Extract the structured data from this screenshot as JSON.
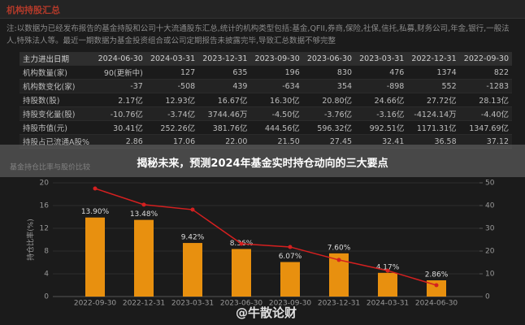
{
  "header": {
    "title": "机构持股汇总"
  },
  "note": "注:以数据为已经发布报告的基金持股和公司十大流通股东汇总,统计的机构类型包括:基金,QFII,券商,保险,社保,信托,私募,财务公司,年金,银行,一般法人,特殊法人等。最近一期数据为基金投资组合或公司定期报告未披露完毕,导致汇总数据不够完整",
  "table": {
    "columns": [
      "主力进出日期",
      "2024-06-30",
      "2024-03-31",
      "2023-12-31",
      "2023-09-30",
      "2023-06-30",
      "2023-03-31",
      "2022-12-31",
      "2022-09-30"
    ],
    "rows": [
      [
        "机构数量(家)",
        "90(更新中)",
        "127",
        "635",
        "196",
        "830",
        "476",
        "1374",
        "822"
      ],
      [
        "机构数变化(家)",
        "-37",
        "-508",
        "439",
        "-634",
        "354",
        "-898",
        "552",
        "-1283"
      ],
      [
        "持股数(股)",
        "2.17亿",
        "12.93亿",
        "16.67亿",
        "16.30亿",
        "20.80亿",
        "24.66亿",
        "27.72亿",
        "28.13亿"
      ],
      [
        "持股变化量(股)",
        "-10.76亿",
        "-3.74亿",
        "3744.46万",
        "-4.50亿",
        "-3.76亿",
        "-3.16亿",
        "-4124.14万",
        "-4.40亿"
      ],
      [
        "持股市值(元)",
        "30.41亿",
        "252.26亿",
        "381.76亿",
        "444.56亿",
        "596.32亿",
        "992.51亿",
        "1171.31亿",
        "1347.69亿"
      ],
      [
        "持股占已流通A股%",
        "2.86",
        "17.06",
        "22.00",
        "21.50",
        "27.45",
        "32.41",
        "36.58",
        "37.12"
      ]
    ]
  },
  "banner": "揭秘未来，预测2024年基金实时持仓动向的三大要点",
  "watermark": "@牛散论财",
  "chart_data": {
    "type": "bar",
    "title": "基金持仓比率与股价比较",
    "y_label": "持仓比率(%)",
    "categories": [
      "2022-09-30",
      "2022-12-31",
      "2023-03-31",
      "2023-06-30",
      "2023-09-30",
      "2023-12-31",
      "2024-03-31",
      "2024-06-30"
    ],
    "series": [
      {
        "type": "bar",
        "color": "#e8900f",
        "values": [
          13.9,
          13.48,
          9.42,
          8.36,
          6.07,
          7.6,
          4.17,
          2.86
        ],
        "value_labels": [
          "13.90%",
          "13.48%",
          "9.42%",
          "8.36%",
          "6.07%",
          "7.60%",
          "4.17%",
          "2.86%"
        ]
      },
      {
        "type": "line",
        "axis": "y2",
        "color": "#d42020",
        "values": [
          47.5,
          40.4,
          38.2,
          23.2,
          21.8,
          16.1,
          11.4,
          5.0
        ]
      }
    ],
    "ylim": [
      0,
      20
    ],
    "yticks": [
      0,
      4,
      8,
      12,
      16,
      20
    ],
    "y2lim": [
      0,
      50
    ],
    "y2ticks": [
      0,
      10,
      20,
      30,
      40,
      50
    ]
  }
}
